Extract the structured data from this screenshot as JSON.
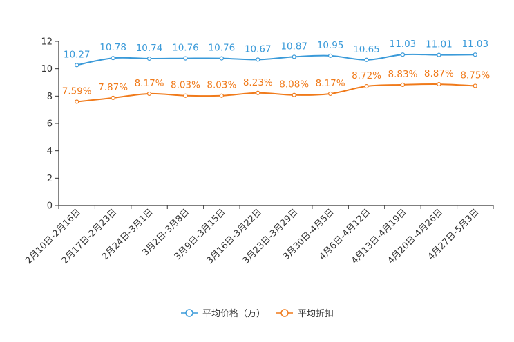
{
  "chart_data": {
    "type": "line",
    "categories": [
      "2月10日-2月16日",
      "2月17日-2月23日",
      "2月24日-3月1日",
      "3月2日-3月8日",
      "3月9日-3月15日",
      "3月16日-3月22日",
      "3月23日-3月29日",
      "3月30日-4月5日",
      "4月6日-4月12日",
      "4月13日-4月19日",
      "4月20日-4月26日",
      "4月27日-5月3日"
    ],
    "series": [
      {
        "name": "平均价格（万）",
        "color": "#3a9ad9",
        "values": [
          10.27,
          10.78,
          10.74,
          10.76,
          10.76,
          10.67,
          10.87,
          10.95,
          10.65,
          11.03,
          11.01,
          11.03
        ],
        "labels": [
          "10.27",
          "10.78",
          "10.74",
          "10.76",
          "10.76",
          "10.67",
          "10.87",
          "10.95",
          "10.65",
          "11.03",
          "11.01",
          "11.03"
        ]
      },
      {
        "name": "平均折扣",
        "color": "#f07a1a",
        "values": [
          7.59,
          7.87,
          8.17,
          8.03,
          8.03,
          8.23,
          8.08,
          8.17,
          8.72,
          8.83,
          8.87,
          8.75
        ],
        "labels": [
          "7.59%",
          "7.87%",
          "8.17%",
          "8.03%",
          "8.03%",
          "8.23%",
          "8.08%",
          "8.17%",
          "8.72%",
          "8.83%",
          "8.87%",
          "8.75%"
        ]
      }
    ],
    "ylim": [
      0,
      12
    ],
    "yticks": [
      0,
      2,
      4,
      6,
      8,
      10,
      12
    ],
    "title": "",
    "xlabel": "",
    "ylabel": "",
    "legend": "bottom-center",
    "grid": false
  }
}
